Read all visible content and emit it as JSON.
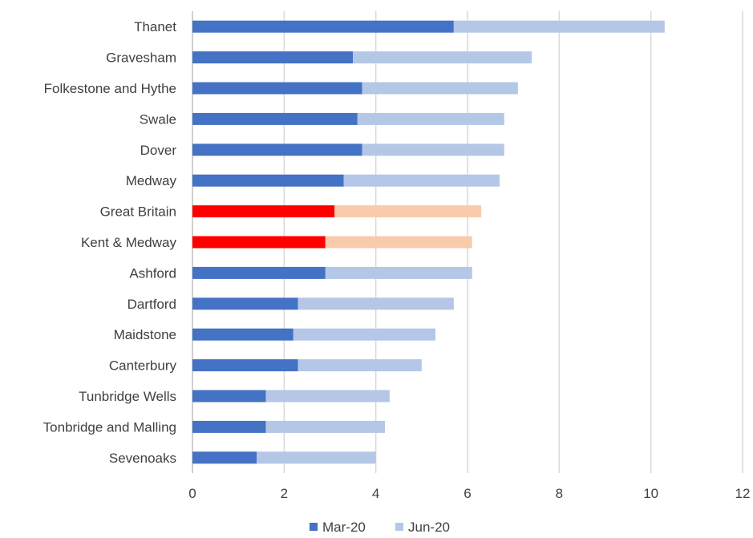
{
  "chart_data": {
    "type": "bar",
    "orientation": "horizontal",
    "stacked": true,
    "title": "",
    "xlabel": "",
    "ylabel": "",
    "xlim": [
      0,
      12
    ],
    "x_ticks": [
      "0",
      "2",
      "4",
      "6",
      "8",
      "10",
      "12"
    ],
    "grid": "vertical",
    "legend_position": "bottom",
    "categories": [
      "Thanet",
      "Gravesham",
      "Folkestone and Hythe",
      "Swale",
      "Dover",
      "Medway",
      "Great Britain",
      "Kent & Medway",
      "Ashford",
      "Dartford",
      "Maidstone",
      "Canterbury",
      "Tunbridge Wells",
      "Tonbridge and Malling",
      "Sevenoaks"
    ],
    "series": [
      {
        "name": "Mar-20",
        "color": "#4472c4",
        "highlight_color": "#ff0000",
        "values": [
          5.7,
          3.5,
          3.7,
          3.6,
          3.7,
          3.3,
          3.1,
          2.9,
          2.9,
          2.3,
          2.2,
          2.3,
          1.6,
          1.6,
          1.4
        ]
      },
      {
        "name": "Jun-20",
        "color": "#b4c7e7",
        "highlight_color": "#f8cbad",
        "values": [
          4.6,
          3.9,
          3.4,
          3.2,
          3.1,
          3.4,
          3.2,
          3.2,
          3.2,
          3.4,
          3.1,
          2.7,
          2.7,
          2.6,
          2.6
        ]
      }
    ],
    "highlight_categories": [
      "Great Britain",
      "Kent & Medway"
    ]
  }
}
